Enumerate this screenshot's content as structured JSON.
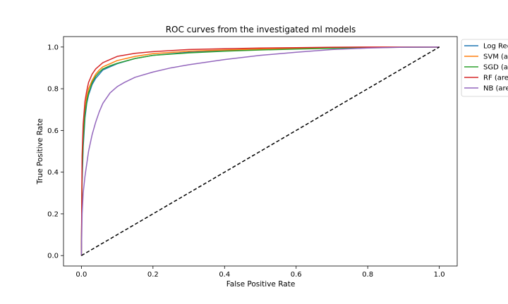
{
  "chart_data": {
    "type": "line",
    "title": "ROC curves from the investigated ml models",
    "xlabel": "False Positive Rate",
    "ylabel": "True Positive Rate",
    "xlim": [
      -0.05,
      1.05
    ],
    "ylim": [
      -0.05,
      1.05
    ],
    "xticks": [
      "0.0",
      "0.2",
      "0.4",
      "0.6",
      "0.8",
      "1.0"
    ],
    "yticks": [
      "0.0",
      "0.2",
      "0.4",
      "0.6",
      "0.8",
      "1.0"
    ],
    "grid": false,
    "legend_position": "outside-right-top",
    "series": [
      {
        "name": "Log Reg",
        "color": "#1f77b4",
        "x": [
          0,
          0.002,
          0.005,
          0.01,
          0.015,
          0.02,
          0.03,
          0.04,
          0.05,
          0.06,
          0.08,
          0.1,
          0.15,
          0.2,
          0.3,
          0.4,
          0.5,
          0.6,
          0.7,
          0.8,
          0.9,
          1.0
        ],
        "y": [
          0,
          0.35,
          0.52,
          0.66,
          0.73,
          0.77,
          0.82,
          0.85,
          0.87,
          0.89,
          0.905,
          0.92,
          0.945,
          0.96,
          0.975,
          0.982,
          0.988,
          0.992,
          0.995,
          0.998,
          0.999,
          1.0
        ]
      },
      {
        "name": "SVM (a",
        "color": "#ff7f0e",
        "x": [
          0,
          0.002,
          0.005,
          0.01,
          0.015,
          0.02,
          0.03,
          0.04,
          0.05,
          0.06,
          0.08,
          0.1,
          0.15,
          0.2,
          0.3,
          0.4,
          0.5,
          0.6,
          0.7,
          0.8,
          0.9,
          1.0
        ],
        "y": [
          0,
          0.42,
          0.58,
          0.7,
          0.76,
          0.8,
          0.84,
          0.87,
          0.89,
          0.905,
          0.92,
          0.935,
          0.955,
          0.968,
          0.98,
          0.986,
          0.99,
          0.994,
          0.997,
          0.999,
          1.0,
          1.0
        ]
      },
      {
        "name": "SGD (a",
        "color": "#2ca02c",
        "x": [
          0,
          0.002,
          0.005,
          0.01,
          0.015,
          0.02,
          0.03,
          0.04,
          0.05,
          0.06,
          0.08,
          0.1,
          0.15,
          0.2,
          0.3,
          0.4,
          0.5,
          0.6,
          0.7,
          0.8,
          0.9,
          1.0
        ],
        "y": [
          0,
          0.4,
          0.55,
          0.68,
          0.74,
          0.78,
          0.83,
          0.86,
          0.88,
          0.895,
          0.91,
          0.922,
          0.945,
          0.96,
          0.972,
          0.98,
          0.986,
          0.99,
          0.994,
          0.997,
          0.999,
          1.0
        ]
      },
      {
        "name": "RF (are",
        "color": "#d62728",
        "x": [
          0,
          0.002,
          0.005,
          0.01,
          0.015,
          0.02,
          0.03,
          0.04,
          0.05,
          0.06,
          0.08,
          0.1,
          0.15,
          0.2,
          0.3,
          0.4,
          0.5,
          0.6,
          0.7,
          0.8,
          0.9,
          1.0
        ],
        "y": [
          0,
          0.48,
          0.63,
          0.74,
          0.79,
          0.83,
          0.87,
          0.895,
          0.91,
          0.925,
          0.94,
          0.955,
          0.97,
          0.978,
          0.988,
          0.992,
          0.995,
          0.997,
          0.999,
          1.0,
          1.0,
          1.0
        ]
      },
      {
        "name": "NB (are",
        "color": "#9467bd",
        "x": [
          0,
          0.002,
          0.005,
          0.01,
          0.02,
          0.03,
          0.04,
          0.05,
          0.06,
          0.08,
          0.1,
          0.12,
          0.15,
          0.2,
          0.25,
          0.3,
          0.4,
          0.5,
          0.6,
          0.7,
          0.8,
          0.9,
          1.0
        ],
        "y": [
          0,
          0.2,
          0.3,
          0.38,
          0.5,
          0.58,
          0.64,
          0.69,
          0.73,
          0.78,
          0.81,
          0.83,
          0.855,
          0.88,
          0.9,
          0.915,
          0.94,
          0.96,
          0.975,
          0.988,
          0.995,
          0.999,
          1.0
        ]
      },
      {
        "name": "",
        "color": "#000000",
        "dash": true,
        "x": [
          0,
          1
        ],
        "y": [
          0,
          1
        ]
      }
    ]
  }
}
